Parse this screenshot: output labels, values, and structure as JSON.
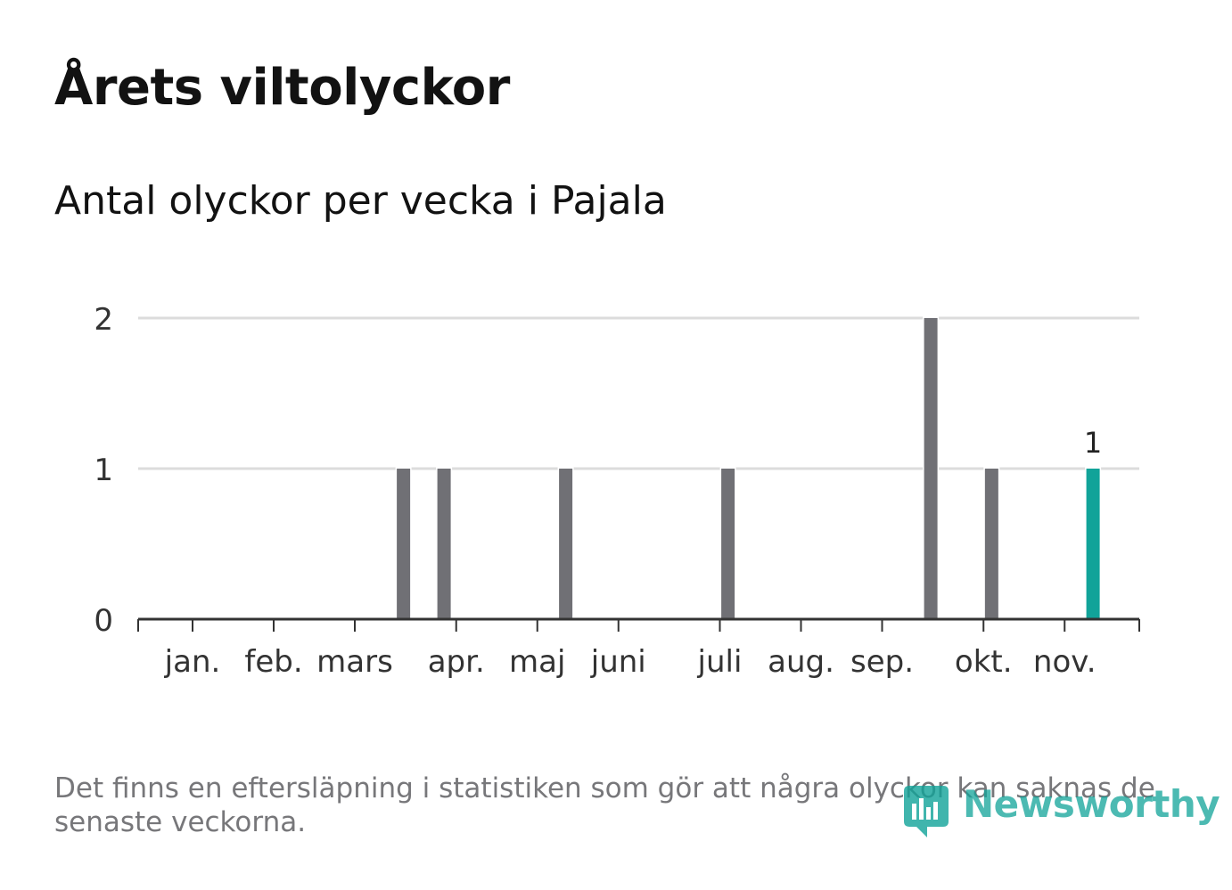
{
  "header": {
    "title": "Årets viltolyckor",
    "subtitle": "Antal olyckor per vecka i Pajala"
  },
  "chart_data": {
    "type": "bar",
    "title": "Årets viltolyckor",
    "subtitle": "Antal olyckor per vecka i Pajala",
    "xlabel": "",
    "ylabel": "",
    "ylim": [
      0,
      2
    ],
    "yticks": [
      0,
      1,
      2
    ],
    "grid": true,
    "x_unit": "week",
    "x_range": [
      1,
      46
    ],
    "month_ticks": [
      {
        "label": "jan.",
        "week": 1.6
      },
      {
        "label": "feb.",
        "week": 5.6
      },
      {
        "label": "mars",
        "week": 9.6
      },
      {
        "label": "apr.",
        "week": 14.6
      },
      {
        "label": "maj",
        "week": 18.6
      },
      {
        "label": "juni",
        "week": 22.6
      },
      {
        "label": "juli",
        "week": 27.6
      },
      {
        "label": "aug.",
        "week": 31.6
      },
      {
        "label": "sep.",
        "week": 35.6
      },
      {
        "label": "okt.",
        "week": 40.6
      },
      {
        "label": "nov.",
        "week": 44.6
      }
    ],
    "bars": [
      {
        "week": 12,
        "value": 1
      },
      {
        "week": 14,
        "value": 1
      },
      {
        "week": 20,
        "value": 1
      },
      {
        "week": 28,
        "value": 1
      },
      {
        "week": 38,
        "value": 2
      },
      {
        "week": 41,
        "value": 1
      },
      {
        "week": 46,
        "value": 1,
        "highlight": true,
        "label": "1"
      }
    ],
    "colors": {
      "bar": "#707075",
      "highlight": "#11a399",
      "grid": "#dcdcdc",
      "axis": "#333333"
    }
  },
  "footer": {
    "note": "Det finns en eftersläpning i statistiken som gör att några olyckor kan saknas de senaste veckorna.",
    "brand": "Newsworthy",
    "brand_icon": "newsworthy-logo-icon"
  }
}
